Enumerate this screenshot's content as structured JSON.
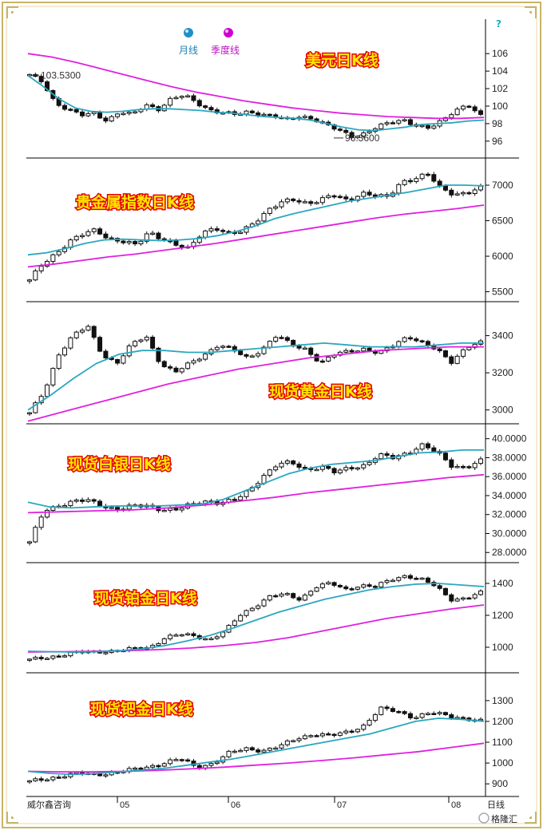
{
  "colors": {
    "ma_month": "#2aa7c0",
    "ma_quarter": "#e020e0",
    "candle": "#111111",
    "banner_fill": "#ffe600",
    "banner_stroke": "#e60000",
    "frame": "#c8b46a"
  },
  "legend": {
    "month_label": "月线",
    "quarter_label": "季度线"
  },
  "footer": {
    "source": "威尔鑫咨询",
    "months": [
      "05",
      "06",
      "07",
      "08"
    ],
    "period_label": "日线",
    "watermark": "格隆汇"
  },
  "chart_data": [
    {
      "type": "candlestick",
      "title": "美元日K线",
      "yticks": [
        "106",
        "104",
        "102",
        "100",
        "98",
        "96"
      ],
      "ylim": [
        94.8,
        107.2
      ],
      "close_path": [
        103.5,
        102.8,
        100.4,
        99.6,
        98.9,
        99.2,
        98.4,
        99.3,
        99.0,
        100.2,
        99.7,
        100.8,
        101.2,
        100.4,
        99.6,
        99.2,
        99.0,
        99.4,
        99.1,
        98.8,
        98.4,
        98.9,
        98.6,
        97.8,
        97.2,
        96.6,
        96.9,
        97.6,
        98.1,
        98.5,
        97.8,
        97.4,
        98.3,
        99.6,
        100.2,
        98.8
      ],
      "ma_month": [
        103.5,
        102.2,
        100.8,
        99.8,
        99.4,
        99.3,
        99.4,
        99.6,
        99.7,
        99.7,
        99.6,
        99.5,
        99.3,
        99.2,
        99.0,
        98.8,
        98.7,
        98.6,
        98.4,
        98.0,
        97.6,
        97.3,
        97.2,
        97.4,
        97.6,
        97.9,
        98.0,
        98.1,
        98.3,
        98.4
      ],
      "ma_quarter": [
        106.0,
        105.6,
        105.0,
        104.3,
        103.6,
        102.9,
        102.2,
        101.6,
        101.1,
        100.6,
        100.2,
        99.8,
        99.5,
        99.2,
        99.0,
        98.8,
        98.7,
        98.6,
        98.6,
        98.7
      ],
      "annotations": {
        "high": "103.5300",
        "low": "96.3600"
      }
    },
    {
      "type": "candlestick",
      "title": "贵金属指数日K线",
      "yticks": [
        "7000",
        "6500",
        "6000",
        "5500"
      ],
      "ylim": [
        5450,
        7270
      ],
      "close_path": [
        5650,
        5900,
        6050,
        6200,
        6300,
        6380,
        6250,
        6200,
        6150,
        6350,
        6250,
        6150,
        6100,
        6350,
        6400,
        6300,
        6350,
        6500,
        6650,
        6750,
        6800,
        6750,
        6800,
        6850,
        6780,
        6900,
        6850,
        6820,
        7050,
        7100,
        7150,
        6950,
        6880,
        6900,
        6950
      ],
      "ma_month": [
        6020,
        6050,
        6110,
        6180,
        6230,
        6240,
        6230,
        6220,
        6230,
        6250,
        6290,
        6350,
        6430,
        6530,
        6600,
        6660,
        6720,
        6780,
        6820,
        6860,
        6900,
        6950,
        7000,
        7000,
        6990
      ],
      "ma_quarter": [
        5850,
        5890,
        5940,
        5990,
        6030,
        6080,
        6130,
        6180,
        6240,
        6300,
        6360,
        6420,
        6480,
        6540,
        6590,
        6630,
        6670,
        6720
      ]
    },
    {
      "type": "candlestick",
      "title": "现货黄金日K线",
      "yticks": [
        "3400",
        "3200",
        "3000"
      ],
      "ylim": [
        2960,
        3540
      ],
      "close_path": [
        2980,
        3100,
        3300,
        3400,
        3450,
        3300,
        3250,
        3350,
        3400,
        3250,
        3200,
        3250,
        3300,
        3350,
        3320,
        3280,
        3330,
        3400,
        3350,
        3330,
        3250,
        3300,
        3320,
        3330,
        3300,
        3350,
        3400,
        3360,
        3320,
        3260,
        3340,
        3360
      ],
      "ma_month": [
        3000,
        3080,
        3170,
        3250,
        3300,
        3320,
        3320,
        3310,
        3310,
        3320,
        3330,
        3340,
        3350,
        3360,
        3350,
        3340,
        3340,
        3340,
        3350,
        3360,
        3360
      ],
      "ma_quarter": [
        2940,
        2990,
        3040,
        3090,
        3140,
        3180,
        3220,
        3250,
        3280,
        3300,
        3320,
        3330,
        3340,
        3340
      ]
    },
    {
      "type": "candlestick",
      "title": "现货白银日K线",
      "yticks": [
        "40.0000",
        "38.0000",
        "36.0000",
        "34.0000",
        "32.0000",
        "30.0000",
        "28.0000"
      ],
      "ylim": [
        27.6,
        40.9
      ],
      "close_path": [
        29.0,
        32.5,
        33.0,
        33.3,
        33.5,
        33.0,
        32.5,
        32.8,
        33.0,
        32.6,
        32.4,
        33.0,
        33.5,
        33.2,
        33.4,
        34.5,
        36.0,
        37.2,
        37.5,
        36.8,
        37.0,
        36.4,
        37.0,
        37.2,
        38.2,
        38.0,
        38.6,
        39.3,
        38.5,
        37.2,
        37.0,
        37.6
      ],
      "ma_month": [
        33.3,
        32.8,
        32.7,
        32.8,
        32.9,
        32.9,
        32.9,
        33.0,
        33.1,
        33.6,
        34.5,
        35.4,
        36.3,
        36.9,
        37.3,
        37.5,
        37.7,
        38.1,
        38.5,
        38.6,
        38.8,
        38.8
      ],
      "ma_quarter": [
        32.2,
        32.3,
        32.4,
        32.5,
        32.7,
        33.0,
        33.4,
        33.8,
        34.3,
        34.7,
        35.1,
        35.5,
        35.9,
        36.2
      ]
    },
    {
      "type": "candlestick",
      "title": "现货铂金日K线",
      "yticks": [
        "1400",
        "1200",
        "1000"
      ],
      "ylim": [
        880,
        1490
      ],
      "close_path": [
        920,
        935,
        950,
        965,
        970,
        975,
        980,
        990,
        1000,
        1060,
        1080,
        1070,
        1050,
        1100,
        1200,
        1260,
        1320,
        1330,
        1300,
        1380,
        1400,
        1360,
        1390,
        1380,
        1420,
        1450,
        1430,
        1380,
        1300,
        1310,
        1340
      ],
      "ma_month": [
        975,
        972,
        970,
        972,
        978,
        990,
        1010,
        1040,
        1075,
        1120,
        1170,
        1220,
        1260,
        1300,
        1330,
        1360,
        1380,
        1395,
        1400,
        1390,
        1380
      ],
      "ma_quarter": [
        970,
        972,
        975,
        978,
        985,
        995,
        1010,
        1030,
        1060,
        1100,
        1140,
        1180,
        1210,
        1240,
        1265
      ]
    },
    {
      "type": "candlestick",
      "title": "现货钯金日K线",
      "yticks": [
        "1300",
        "1200",
        "1100",
        "1000",
        "900"
      ],
      "ylim": [
        870,
        1380
      ],
      "close_path": [
        910,
        925,
        940,
        950,
        945,
        955,
        965,
        980,
        1000,
        1020,
        980,
        1000,
        1050,
        1070,
        1060,
        1080,
        1120,
        1140,
        1130,
        1150,
        1180,
        1260,
        1250,
        1220,
        1240,
        1230,
        1215,
        1200
      ],
      "ma_month": [
        960,
        950,
        945,
        950,
        958,
        966,
        975,
        990,
        1005,
        1020,
        1040,
        1060,
        1080,
        1100,
        1120,
        1140,
        1170,
        1200,
        1215,
        1210,
        1200
      ],
      "ma_quarter": [
        960,
        958,
        958,
        960,
        965,
        972,
        980,
        990,
        1000,
        1012,
        1025,
        1040,
        1055,
        1075,
        1095
      ]
    }
  ]
}
